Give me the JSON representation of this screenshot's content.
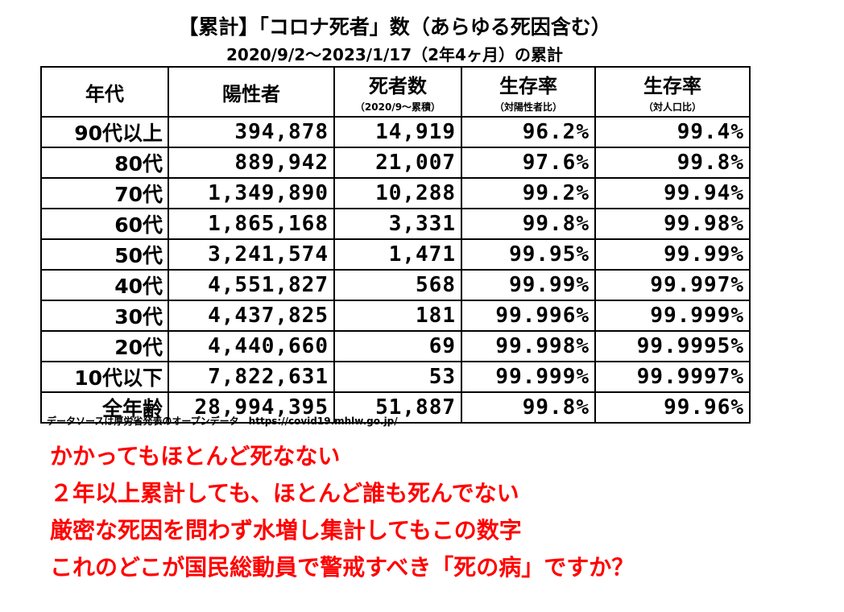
{
  "title": "【累計】「コロナ死者」数（あらゆる死因含む）",
  "subtitle": "2020/9/2～2023/1/17（2年4ヶ月）の累計",
  "table": {
    "headers": [
      {
        "main": "年代",
        "sub": ""
      },
      {
        "main": "陽性者",
        "sub": ""
      },
      {
        "main": "死者数",
        "sub": "（2020/9～累積）"
      },
      {
        "main": "生存率",
        "sub": "（対陽性者比）"
      },
      {
        "main": "生存率",
        "sub": "（対人口比）"
      }
    ],
    "rows": [
      [
        "90代以上",
        "394,878",
        "14,919",
        "96.2%",
        "99.4%"
      ],
      [
        "80代",
        "889,942",
        "21,007",
        "97.6%",
        "99.8%"
      ],
      [
        "70代",
        "1,349,890",
        "10,288",
        "99.2%",
        "99.94%"
      ],
      [
        "60代",
        "1,865,168",
        "3,331",
        "99.8%",
        "99.98%"
      ],
      [
        "50代",
        "3,241,574",
        "1,471",
        "99.95%",
        "99.99%"
      ],
      [
        "40代",
        "4,551,827",
        "568",
        "99.99%",
        "99.997%"
      ],
      [
        "30代",
        "4,437,825",
        "181",
        "99.996%",
        "99.999%"
      ],
      [
        "20代",
        "4,440,660",
        "69",
        "99.998%",
        "99.9995%"
      ],
      [
        "10代以下",
        "7,822,631",
        "53",
        "99.999%",
        "99.9997%"
      ],
      [
        "全年齢",
        "28,994,395",
        "51,887",
        "99.8%",
        "99.96%"
      ]
    ]
  },
  "source": "データソースは厚労省発表のオープンデータ　https://covid19.mhlw.go.jp/",
  "messages": [
    "かかってもほとんど死なない",
    "２年以上累計しても、ほとんど誰も死んでない",
    "厳密な死因を問わず水増し集計してもこの数字",
    "これのどこが国民総動員で警戒すべき「死の病」ですか？"
  ],
  "colors": {
    "message": "#ff0000",
    "text": "#000000",
    "background": "#ffffff"
  }
}
